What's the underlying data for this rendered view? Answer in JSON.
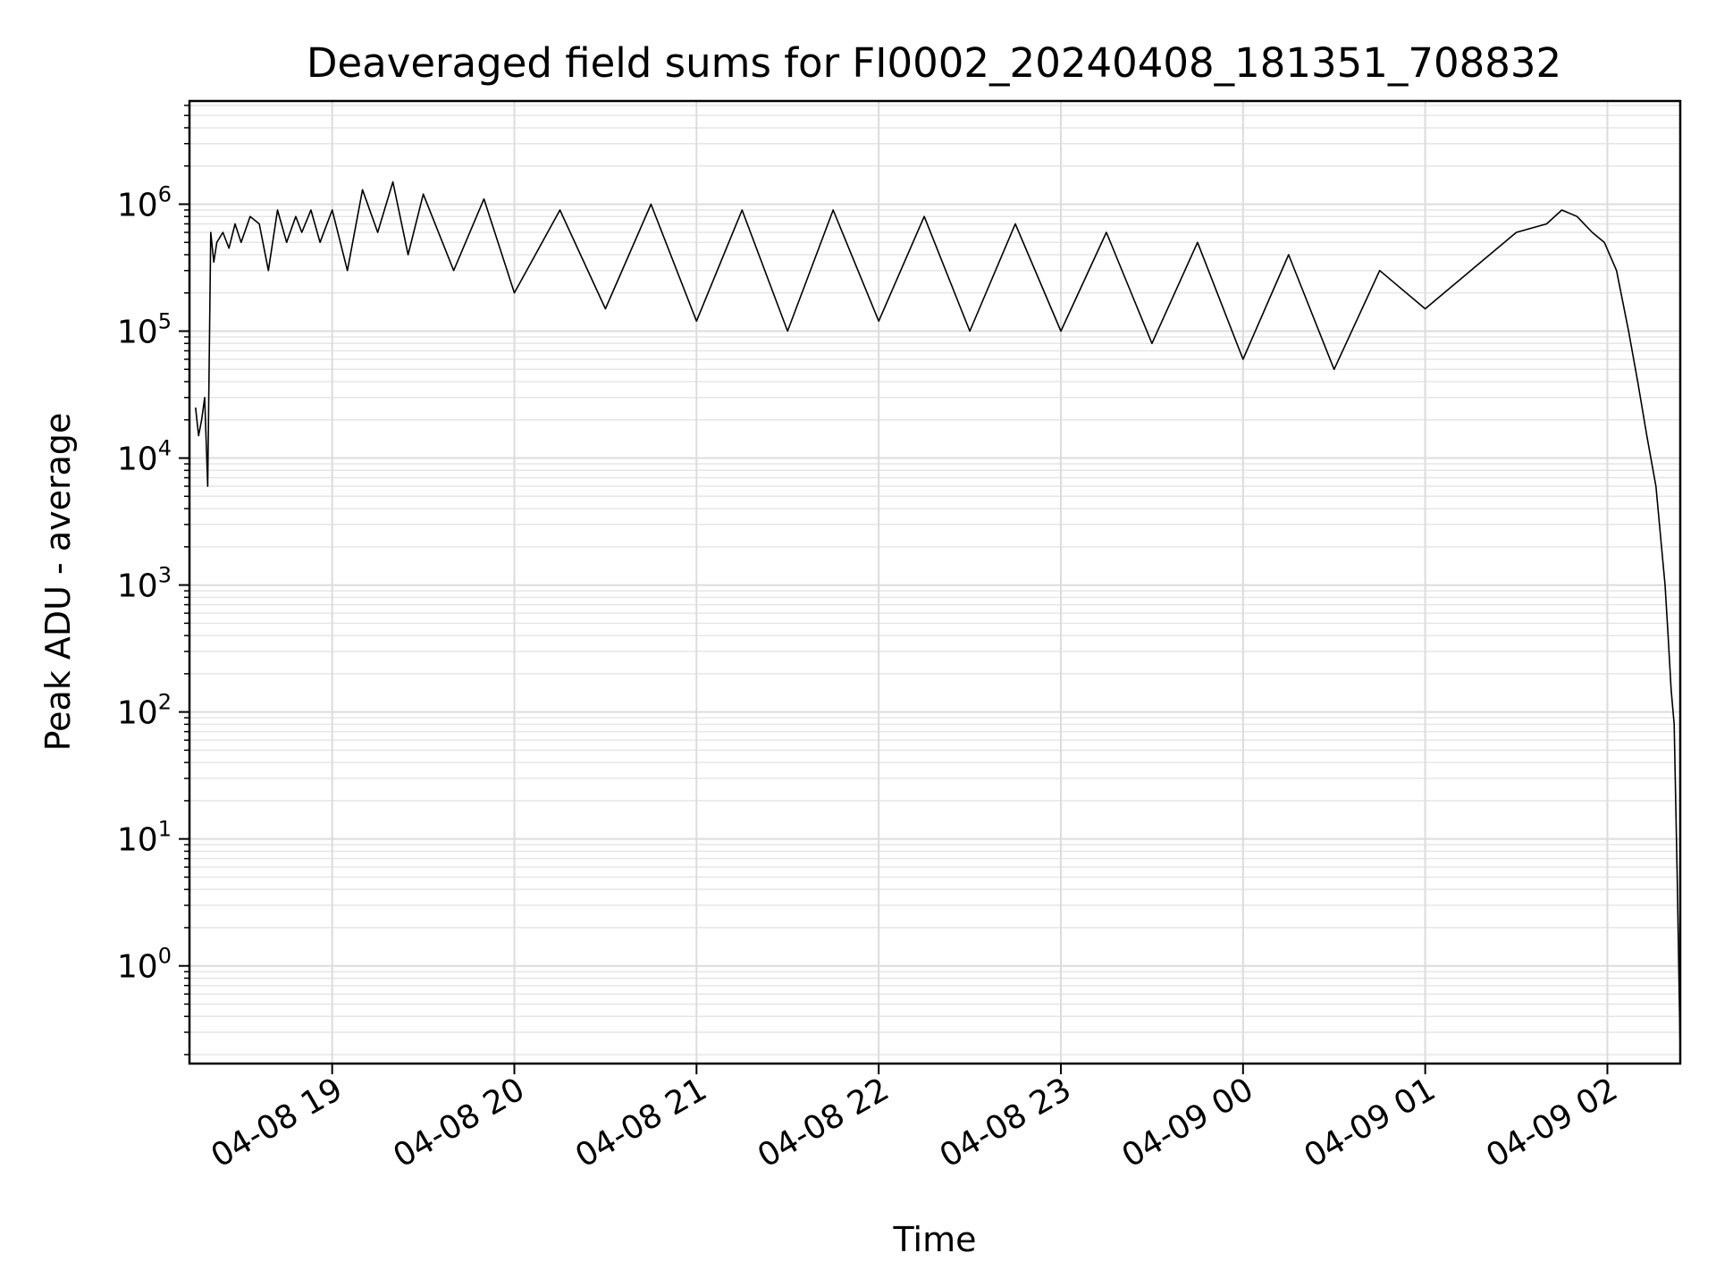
{
  "chart_data": {
    "type": "line",
    "title": "Deaveraged field sums for FI0002_20240408_181351_708832",
    "xlabel": "Time",
    "ylabel": "Peak ADU - average",
    "xlim": [
      "2024-04-08 18:13",
      "2024-04-09 02:24"
    ],
    "ylim": [
      0.17,
      6500000
    ],
    "y_scale": "log",
    "grid": true,
    "x_ticks": [
      {
        "value": "2024-04-08 19:00",
        "label": "04-08 19"
      },
      {
        "value": "2024-04-08 20:00",
        "label": "04-08 20"
      },
      {
        "value": "2024-04-08 21:00",
        "label": "04-08 21"
      },
      {
        "value": "2024-04-08 22:00",
        "label": "04-08 22"
      },
      {
        "value": "2024-04-08 23:00",
        "label": "04-08 23"
      },
      {
        "value": "2024-04-09 00:00",
        "label": "04-09 00"
      },
      {
        "value": "2024-04-09 01:00",
        "label": "04-09 01"
      },
      {
        "value": "2024-04-09 02:00",
        "label": "04-09 02"
      }
    ],
    "y_ticks": [
      {
        "value": 1,
        "base": "10",
        "exp": "0"
      },
      {
        "value": 10,
        "base": "10",
        "exp": "1"
      },
      {
        "value": 100,
        "base": "10",
        "exp": "2"
      },
      {
        "value": 1000,
        "base": "10",
        "exp": "3"
      },
      {
        "value": 10000,
        "base": "10",
        "exp": "4"
      },
      {
        "value": 100000,
        "base": "10",
        "exp": "5"
      },
      {
        "value": 1000000,
        "base": "10",
        "exp": "6"
      }
    ],
    "series": [
      {
        "color": "#000000",
        "x": [
          "2024-04-08 18:15",
          "2024-04-08 18:16",
          "2024-04-08 18:17",
          "2024-04-08 18:18",
          "2024-04-08 18:19",
          "2024-04-08 18:20",
          "2024-04-08 18:21",
          "2024-04-08 18:22",
          "2024-04-08 18:24",
          "2024-04-08 18:26",
          "2024-04-08 18:28",
          "2024-04-08 18:30",
          "2024-04-08 18:33",
          "2024-04-08 18:36",
          "2024-04-08 18:39",
          "2024-04-08 18:42",
          "2024-04-08 18:45",
          "2024-04-08 18:48",
          "2024-04-08 18:50",
          "2024-04-08 18:53",
          "2024-04-08 18:56",
          "2024-04-08 19:00",
          "2024-04-08 19:05",
          "2024-04-08 19:10",
          "2024-04-08 19:15",
          "2024-04-08 19:20",
          "2024-04-08 19:25",
          "2024-04-08 19:30",
          "2024-04-08 19:40",
          "2024-04-08 19:50",
          "2024-04-08 20:00",
          "2024-04-08 20:15",
          "2024-04-08 20:30",
          "2024-04-08 20:45",
          "2024-04-08 21:00",
          "2024-04-08 21:15",
          "2024-04-08 21:30",
          "2024-04-08 21:45",
          "2024-04-08 22:00",
          "2024-04-08 22:15",
          "2024-04-08 22:30",
          "2024-04-08 22:45",
          "2024-04-08 23:00",
          "2024-04-08 23:15",
          "2024-04-08 23:30",
          "2024-04-08 23:45",
          "2024-04-09 00:00",
          "2024-04-09 00:15",
          "2024-04-09 00:30",
          "2024-04-09 00:45",
          "2024-04-09 01:00",
          "2024-04-09 01:15",
          "2024-04-09 01:30",
          "2024-04-09 01:40",
          "2024-04-09 01:45",
          "2024-04-09 01:50",
          "2024-04-09 01:55",
          "2024-04-09 01:59",
          "2024-04-09 02:03",
          "2024-04-09 02:07",
          "2024-04-09 02:10",
          "2024-04-09 02:13",
          "2024-04-09 02:16",
          "2024-04-09 02:19",
          "2024-04-09 02:20",
          "2024-04-09 02:21",
          "2024-04-09 02:22",
          "2024-04-09 02:23",
          "2024-04-09 02:24"
        ],
        "y": [
          25000,
          15000,
          20000,
          30000,
          6000,
          600000,
          350000,
          500000,
          600000,
          450000,
          700000,
          500000,
          800000,
          700000,
          300000,
          900000,
          500000,
          800000,
          600000,
          900000,
          500000,
          900000,
          300000,
          1300000,
          600000,
          1500000,
          400000,
          1200000,
          300000,
          1100000,
          200000,
          900000,
          150000,
          1000000,
          120000,
          900000,
          100000,
          900000,
          120000,
          800000,
          100000,
          700000,
          100000,
          600000,
          80000,
          500000,
          60000,
          400000,
          50000,
          300000,
          150000,
          300000,
          600000,
          700000,
          900000,
          800000,
          600000,
          500000,
          300000,
          100000,
          40000,
          15000,
          6000,
          1000,
          400,
          150,
          80,
          5,
          0.2
        ]
      }
    ]
  }
}
